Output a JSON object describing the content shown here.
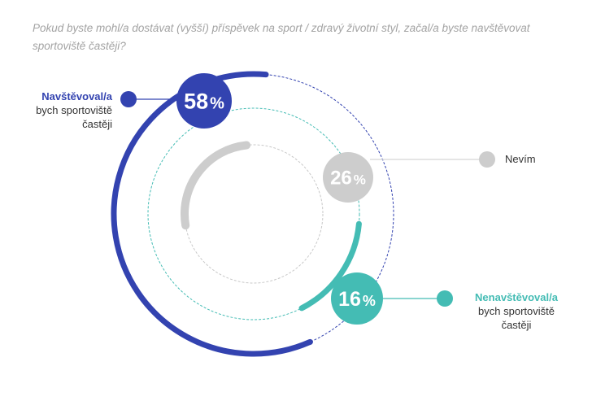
{
  "question": "Pokud byste mohl/a dostávat (vyšší) příspěvek na sport / zdravý životní styl, začal/a byste navštěvovat sportoviště častěji?",
  "chart_data": {
    "type": "radial-bar",
    "categories": [
      "Navštěvoval/a bych sportoviště častěji",
      "Nevím",
      "Nenavštěvoval/a bych sportoviště častěji"
    ],
    "values": [
      58,
      26,
      16
    ],
    "value_labels": [
      "58",
      "26",
      "16"
    ],
    "unit": "%",
    "colors": [
      "#3343b0",
      "#cdcdcd",
      "#44bcb4"
    ],
    "legend": [
      {
        "line1": "Navštěvoval/a",
        "line2": "bych sportoviště",
        "line3": "častěji"
      },
      {
        "line1": "Nevím"
      },
      {
        "line1": "Nenavštěvoval/a",
        "line2": "bych sportoviště",
        "line3": "častěji"
      }
    ]
  }
}
